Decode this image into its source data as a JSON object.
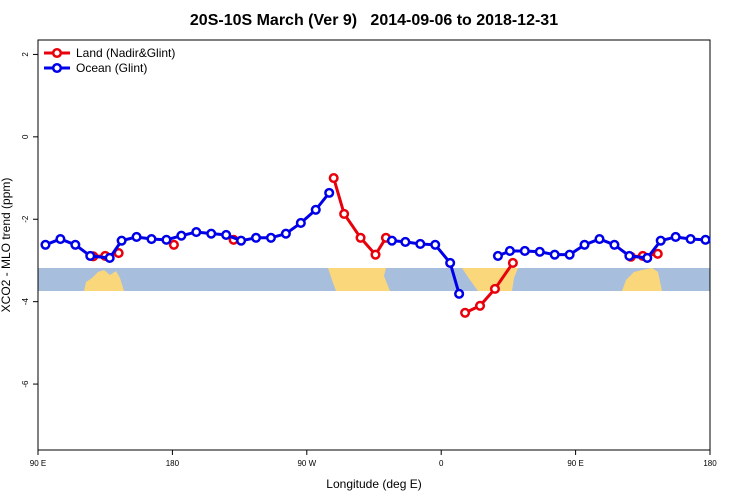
{
  "chart_data": {
    "type": "line",
    "title": "20S-10S March (Ver 9)   2014-09-06 to 2018-12-31",
    "xlabel": "Longitude (deg E)",
    "ylabel": "XCO2 - MLO trend (ppm)",
    "xlim": [
      90,
      540
    ],
    "ylim": [
      -7.6,
      2.35
    ],
    "xticks": [
      {
        "value": 90,
        "label": "90 E"
      },
      180,
      {
        "value": 270,
        "label": "90 W"
      },
      {
        "value": 360,
        "label": "0"
      },
      {
        "value": 450,
        "label": "90 E"
      },
      {
        "value": 540,
        "label": "180"
      }
    ],
    "yticks": [
      2,
      0,
      -2,
      -4,
      -6
    ],
    "legend": "top-left",
    "series": [
      {
        "name": "Land (Nadir&Glint)",
        "color": "#e8000b",
        "x": [
          127,
          135,
          144,
          null,
          181,
          null,
          221,
          null,
          288,
          295,
          306,
          316,
          323,
          null,
          376,
          386,
          396,
          408,
          null,
          487,
          495,
          505
        ],
        "values": [
          -2.9,
          -2.89,
          -2.82,
          null,
          -2.62,
          null,
          -2.5,
          null,
          -1.0,
          -1.87,
          -2.45,
          -2.86,
          -2.45,
          null,
          -4.27,
          -4.1,
          -3.69,
          -3.06,
          null,
          -2.91,
          -2.89,
          -2.84
        ]
      },
      {
        "name": "Ocean (Glint)",
        "color": "#0000e8",
        "x": [
          95,
          105,
          115,
          125,
          138,
          146,
          156,
          166,
          176,
          186,
          196,
          206,
          216,
          226,
          236,
          246,
          256,
          266,
          276,
          285,
          null,
          327,
          336,
          346,
          356,
          366,
          372,
          null,
          398,
          406,
          416,
          426,
          436,
          446,
          456,
          466,
          476,
          486,
          498,
          507,
          517,
          527,
          537
        ],
        "values": [
          -2.62,
          -2.48,
          -2.62,
          -2.89,
          -2.94,
          -2.52,
          -2.43,
          -2.48,
          -2.5,
          -2.4,
          -2.31,
          -2.35,
          -2.38,
          -2.52,
          -2.45,
          -2.45,
          -2.35,
          -2.09,
          -1.77,
          -1.36,
          null,
          -2.52,
          -2.55,
          -2.6,
          -2.62,
          -3.06,
          -3.81,
          null,
          -2.89,
          -2.77,
          -2.77,
          -2.79,
          -2.86,
          -2.86,
          -2.62,
          -2.48,
          -2.62,
          -2.89,
          -2.94,
          -2.52,
          -2.43,
          -2.48,
          -2.5
        ]
      }
    ]
  }
}
